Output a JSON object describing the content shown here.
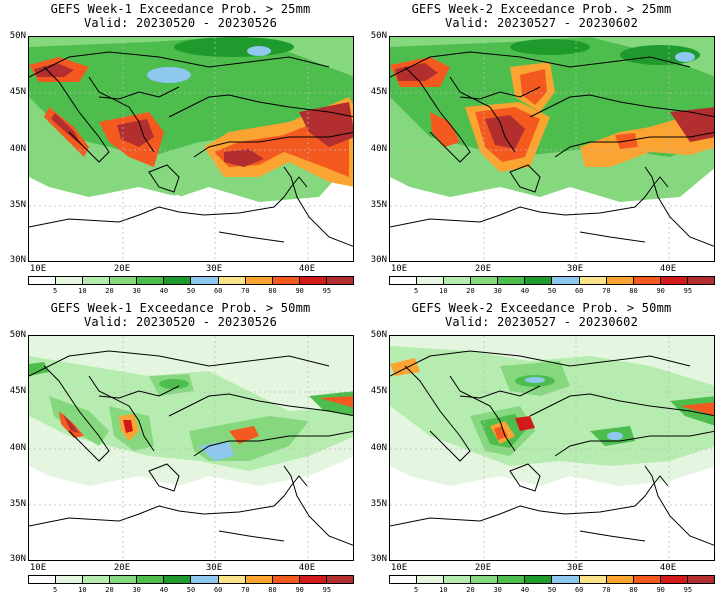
{
  "colorbar": {
    "labels": [
      "5",
      "10",
      "20",
      "30",
      "40",
      "50",
      "60",
      "70",
      "80",
      "90",
      "95"
    ],
    "colors": [
      "#ffffff",
      "#e5f6e0",
      "#b7ecb0",
      "#86d87e",
      "#4dbd4d",
      "#1f9a2d",
      "#8ec8ee",
      "#fbe38a",
      "#fba431",
      "#f45a20",
      "#d31a1a",
      "#b32e2e"
    ]
  },
  "axes": {
    "lat_labels": [
      "50N",
      "45N",
      "40N",
      "35N",
      "30N"
    ],
    "lon_labels": [
      "10E",
      "20E",
      "30E",
      "40E"
    ]
  },
  "panels": [
    {
      "title": "GEFS Week-1 Exceedance Prob. > 25mm",
      "subtitle": "Valid: 20230520 - 20230526",
      "threshold_mm": 25,
      "week": 1
    },
    {
      "title": "GEFS Week-2 Exceedance Prob. > 25mm",
      "subtitle": "Valid: 20230527 - 20230602",
      "threshold_mm": 25,
      "week": 2
    },
    {
      "title": "GEFS Week-1 Exceedance Prob. > 50mm",
      "subtitle": "Valid: 20230520 - 20230526",
      "threshold_mm": 50,
      "week": 1
    },
    {
      "title": "GEFS Week-2 Exceedance Prob. > 50mm",
      "subtitle": "Valid: 20230527 - 20230602",
      "threshold_mm": 50,
      "week": 2
    }
  ]
}
